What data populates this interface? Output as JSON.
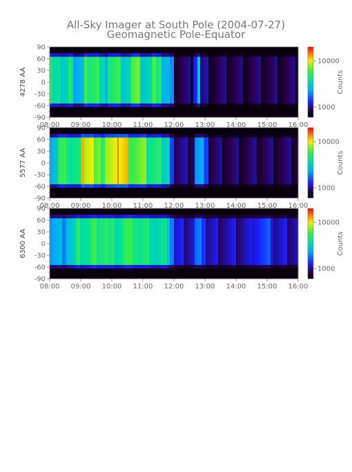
{
  "title": "All-Sky Imager at South Pole (2004-07-27)",
  "subtitle": "Geomagnetic Pole-Equator",
  "chart_data": [
    {
      "type": "heatmap",
      "ylabel": "4278 AA",
      "x_ticks": [
        "08:00",
        "09:00",
        "10:00",
        "11:00",
        "12:00",
        "13:00",
        "14:00",
        "15:00",
        "16:00"
      ],
      "xlim": [
        "08:00",
        "16:00"
      ],
      "y_ticks": [
        90,
        60,
        30,
        0,
        -30,
        -60,
        -90
      ],
      "ylim": [
        -90,
        90
      ],
      "colorbar": {
        "label": "Counts",
        "ticks": [
          10000,
          1000
        ],
        "scale": "log"
      },
      "colormap": "rainbow",
      "bright_band": [
        -55,
        65
      ],
      "segments": [
        {
          "start": "08:00",
          "end": "08:20",
          "level": 0.55
        },
        {
          "start": "08:20",
          "end": "08:35",
          "level": 0.45
        },
        {
          "start": "08:35",
          "end": "08:45",
          "level": 0.6
        },
        {
          "start": "08:45",
          "end": "09:05",
          "level": 0.4
        },
        {
          "start": "09:05",
          "end": "09:35",
          "level": 0.62
        },
        {
          "start": "09:35",
          "end": "09:50",
          "level": 0.45
        },
        {
          "start": "09:50",
          "end": "10:15",
          "level": 0.6
        },
        {
          "start": "10:15",
          "end": "10:35",
          "level": 0.5
        },
        {
          "start": "10:35",
          "end": "10:55",
          "level": 0.65
        },
        {
          "start": "10:55",
          "end": "11:15",
          "level": 0.48
        },
        {
          "start": "11:15",
          "end": "11:35",
          "level": 0.62
        },
        {
          "start": "11:35",
          "end": "11:50",
          "level": 0.4
        },
        {
          "start": "11:50",
          "end": "12:00",
          "level": 0.3
        },
        {
          "start": "12:00",
          "end": "12:35",
          "level": 0.1
        },
        {
          "start": "12:35",
          "end": "12:45",
          "level": 0.25
        },
        {
          "start": "12:45",
          "end": "12:50",
          "level": 0.45
        },
        {
          "start": "12:50",
          "end": "13:05",
          "level": 0.12
        },
        {
          "start": "13:05",
          "end": "16:00",
          "level": 0.09
        }
      ]
    },
    {
      "type": "heatmap",
      "ylabel": "5577 AA",
      "x_ticks": [
        "08:00",
        "09:00",
        "10:00",
        "11:00",
        "12:00",
        "13:00",
        "14:00",
        "15:00",
        "16:00"
      ],
      "xlim": [
        "08:00",
        "16:00"
      ],
      "y_ticks": [
        90,
        60,
        30,
        0,
        -30,
        -60,
        -90
      ],
      "ylim": [
        -90,
        90
      ],
      "colorbar": {
        "label": "Counts",
        "ticks": [
          10000,
          1000
        ],
        "scale": "log"
      },
      "colormap": "rainbow",
      "bright_band": [
        -55,
        65
      ],
      "segments": [
        {
          "start": "08:00",
          "end": "08:15",
          "level": 0.45
        },
        {
          "start": "08:15",
          "end": "08:40",
          "level": 0.6
        },
        {
          "start": "08:40",
          "end": "09:00",
          "level": 0.55
        },
        {
          "start": "09:00",
          "end": "09:25",
          "level": 0.8
        },
        {
          "start": "09:25",
          "end": "09:45",
          "level": 0.65
        },
        {
          "start": "09:45",
          "end": "10:10",
          "level": 0.75
        },
        {
          "start": "10:10",
          "end": "10:30",
          "level": 0.85
        },
        {
          "start": "10:30",
          "end": "10:45",
          "level": 0.6
        },
        {
          "start": "10:45",
          "end": "11:05",
          "level": 0.72
        },
        {
          "start": "11:05",
          "end": "11:20",
          "level": 0.5
        },
        {
          "start": "11:20",
          "end": "11:35",
          "level": 0.62
        },
        {
          "start": "11:35",
          "end": "11:50",
          "level": 0.45
        },
        {
          "start": "11:50",
          "end": "12:00",
          "level": 0.3
        },
        {
          "start": "12:00",
          "end": "12:40",
          "level": 0.12
        },
        {
          "start": "12:40",
          "end": "12:55",
          "level": 0.35
        },
        {
          "start": "12:55",
          "end": "13:05",
          "level": 0.3
        },
        {
          "start": "13:05",
          "end": "16:00",
          "level": 0.1
        }
      ]
    },
    {
      "type": "heatmap",
      "ylabel": "6300 AA",
      "x_ticks": [
        "08:00",
        "09:00",
        "10:00",
        "11:00",
        "12:00",
        "13:00",
        "14:00",
        "15:00",
        "16:00"
      ],
      "xlim": [
        "08:00",
        "16:00"
      ],
      "y_ticks": [
        90,
        60,
        30,
        0,
        -30,
        -60,
        -90
      ],
      "ylim": [
        -90,
        90
      ],
      "colorbar": {
        "label": "Counts",
        "ticks": [
          10000,
          1000
        ],
        "scale": "log"
      },
      "colormap": "rainbow",
      "bright_band": [
        -55,
        65
      ],
      "segments": [
        {
          "start": "08:00",
          "end": "08:30",
          "level": 0.38
        },
        {
          "start": "08:30",
          "end": "08:50",
          "level": 0.45
        },
        {
          "start": "08:50",
          "end": "09:20",
          "level": 0.55
        },
        {
          "start": "09:20",
          "end": "09:50",
          "level": 0.6
        },
        {
          "start": "09:50",
          "end": "10:20",
          "level": 0.55
        },
        {
          "start": "10:20",
          "end": "10:50",
          "level": 0.6
        },
        {
          "start": "10:50",
          "end": "11:20",
          "level": 0.55
        },
        {
          "start": "11:20",
          "end": "11:50",
          "level": 0.5
        },
        {
          "start": "11:50",
          "end": "12:00",
          "level": 0.35
        },
        {
          "start": "12:00",
          "end": "12:40",
          "level": 0.18
        },
        {
          "start": "12:40",
          "end": "13:00",
          "level": 0.28
        },
        {
          "start": "13:00",
          "end": "14:30",
          "level": 0.16
        },
        {
          "start": "14:30",
          "end": "15:10",
          "level": 0.24
        },
        {
          "start": "15:10",
          "end": "16:00",
          "level": 0.17
        }
      ]
    }
  ]
}
